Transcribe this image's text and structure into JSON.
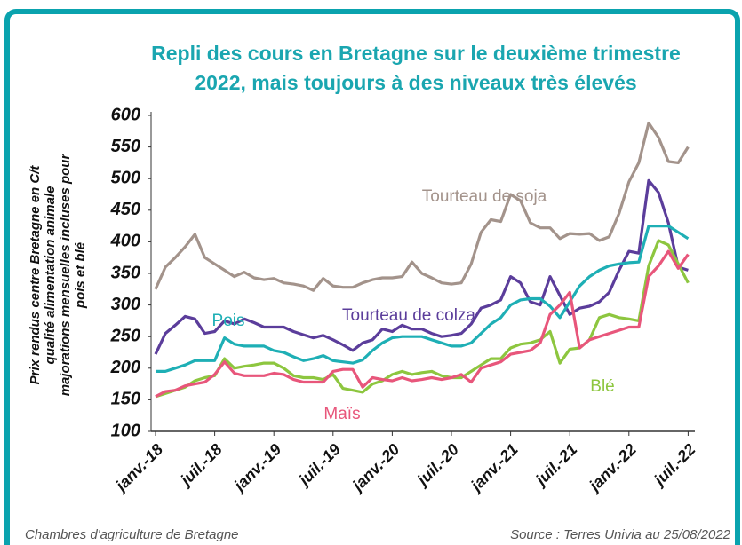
{
  "chart_data": {
    "type": "line",
    "title": [
      "Repli des cours en Bretagne sur le deuxième trimestre",
      "2022, mais toujours à des niveaux très élevés"
    ],
    "ylabel": [
      "Prix rendus centre Bretagne en C/t",
      "qualité alimentation animale",
      "majorations mensuelles incluses pour",
      "pois et blé"
    ],
    "footer_left": "Chambres d'agriculture de Bretagne",
    "footer_right": "Source : Terres Univia au 25/08/2022",
    "categories": [
      "janv.-18",
      null,
      null,
      null,
      null,
      null,
      "juil.-18",
      null,
      null,
      null,
      null,
      null,
      "janv.-19",
      null,
      null,
      null,
      null,
      null,
      "juil.-19",
      null,
      null,
      null,
      null,
      null,
      "janv.-20",
      null,
      null,
      null,
      null,
      null,
      "juil.-20",
      null,
      null,
      null,
      null,
      null,
      "janv.-21",
      null,
      null,
      null,
      null,
      null,
      "juil.-21",
      null,
      null,
      null,
      null,
      null,
      "janv.-22",
      null,
      null,
      null,
      null,
      null,
      "juil.-22"
    ],
    "ylim": [
      100,
      600
    ],
    "yticks": [
      100,
      150,
      200,
      250,
      300,
      350,
      400,
      450,
      500,
      550,
      600
    ],
    "grid": false,
    "series": [
      {
        "name": "Tourteau de soja",
        "color": "#a3938b",
        "values": [
          325,
          360,
          375,
          392,
          412,
          375,
          365,
          355,
          345,
          352,
          343,
          340,
          342,
          335,
          333,
          330,
          323,
          342,
          330,
          328,
          328,
          335,
          340,
          343,
          343,
          345,
          368,
          350,
          343,
          335,
          333,
          335,
          365,
          415,
          435,
          432,
          475,
          465,
          430,
          422,
          422,
          405,
          413,
          412,
          413,
          402,
          408,
          445,
          495,
          525,
          588,
          565,
          527,
          525,
          550
        ]
      },
      {
        "name": "Tourteau de colza",
        "color": "#5b3d9b",
        "values": [
          222,
          255,
          268,
          282,
          278,
          255,
          258,
          275,
          270,
          278,
          272,
          265,
          265,
          265,
          258,
          253,
          248,
          252,
          245,
          237,
          228,
          240,
          245,
          262,
          258,
          268,
          262,
          262,
          255,
          250,
          252,
          255,
          270,
          295,
          300,
          308,
          345,
          335,
          305,
          300,
          345,
          315,
          285,
          295,
          298,
          305,
          320,
          355,
          385,
          382,
          497,
          478,
          430,
          360,
          355
        ]
      },
      {
        "name": "Pois",
        "color": "#1eafb5",
        "values": [
          195,
          195,
          200,
          205,
          212,
          212,
          212,
          248,
          238,
          235,
          235,
          235,
          228,
          225,
          218,
          212,
          215,
          220,
          212,
          210,
          208,
          213,
          228,
          240,
          248,
          250,
          250,
          250,
          245,
          240,
          235,
          235,
          240,
          255,
          270,
          280,
          300,
          308,
          310,
          310,
          298,
          280,
          305,
          330,
          345,
          355,
          362,
          365,
          367,
          368,
          425,
          425,
          425,
          415,
          405
        ]
      },
      {
        "name": "Blé",
        "color": "#8dc63f",
        "values": [
          155,
          160,
          165,
          170,
          180,
          185,
          188,
          215,
          200,
          203,
          205,
          208,
          208,
          200,
          188,
          185,
          185,
          182,
          190,
          168,
          165,
          162,
          175,
          180,
          190,
          195,
          190,
          193,
          195,
          188,
          185,
          185,
          195,
          205,
          215,
          215,
          232,
          238,
          240,
          245,
          258,
          208,
          230,
          232,
          245,
          280,
          285,
          280,
          278,
          275,
          362,
          402,
          395,
          365,
          335
        ]
      },
      {
        "name": "Maïs",
        "color": "#e8567b",
        "values": [
          155,
          163,
          165,
          172,
          175,
          178,
          190,
          210,
          192,
          188,
          188,
          188,
          192,
          190,
          182,
          178,
          178,
          178,
          195,
          198,
          198,
          170,
          185,
          182,
          180,
          185,
          180,
          182,
          185,
          182,
          185,
          190,
          178,
          200,
          205,
          210,
          222,
          225,
          228,
          240,
          285,
          300,
          320,
          232,
          245,
          250,
          255,
          260,
          265,
          265,
          345,
          362,
          385,
          358,
          380
        ]
      }
    ]
  }
}
